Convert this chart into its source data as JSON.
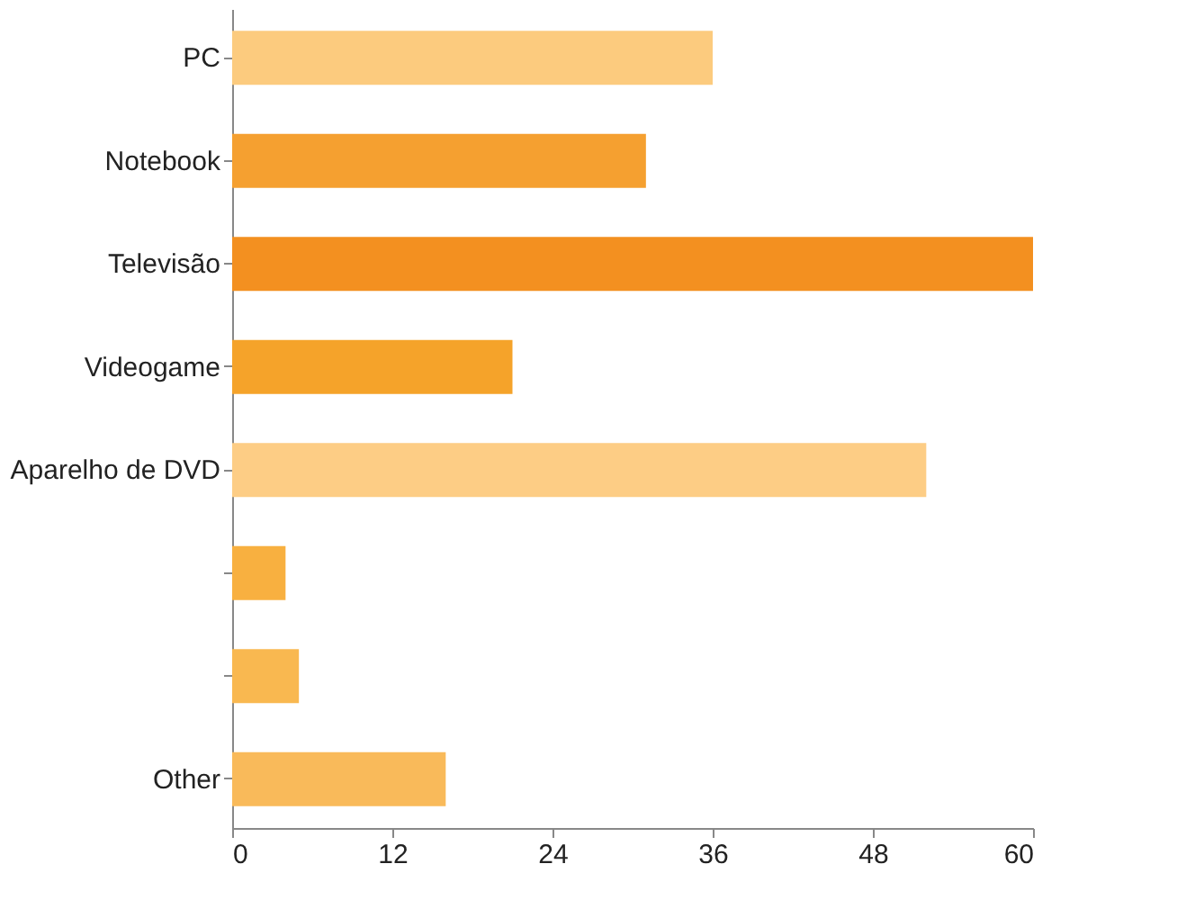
{
  "chart_data": {
    "type": "bar",
    "orientation": "horizontal",
    "categories": [
      "PC",
      "Notebook",
      "Televisão",
      "Videogame",
      "Aparelho de DVD",
      null,
      null,
      "Other"
    ],
    "values": [
      36,
      31,
      60,
      21,
      52,
      4,
      5,
      16
    ],
    "colors": [
      "#fccb7e",
      "#f5a030",
      "#f39020",
      "#f5a32a",
      "#fdcd85",
      "#f8b040",
      "#f9b850",
      "#f9ba5a"
    ],
    "xlim": [
      0,
      60
    ],
    "xticks": [
      0,
      12,
      24,
      36,
      48,
      60
    ],
    "grid": false
  }
}
